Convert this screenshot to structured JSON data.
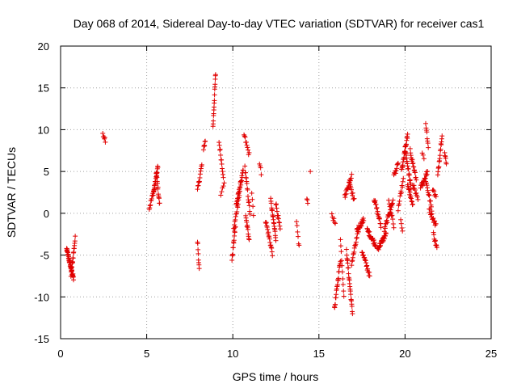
{
  "chart_data": {
    "type": "scatter",
    "title": "Day 068 of 2014, Sidereal Day-to-day VTEC variation (SDTVAR) for receiver cas1",
    "xlabel": "GPS time / hours",
    "ylabel": "SDTVAR / TECUs",
    "xlim": [
      0,
      25
    ],
    "ylim": [
      -15,
      20
    ],
    "xticks": [
      "0",
      "5",
      "10",
      "15",
      "20",
      "25"
    ],
    "yticks": [
      "-15",
      "-10",
      "-5",
      "0",
      "5",
      "10",
      "15",
      "20"
    ],
    "grid": true,
    "marker": "+",
    "color": "#e00000",
    "segments": [
      {
        "x0": 0.35,
        "x1": 0.75,
        "y0": -4.3,
        "y1": -7.8,
        "n": 40
      },
      {
        "x0": 0.6,
        "x1": 0.85,
        "y0": -7.5,
        "y1": -3.0,
        "n": 18
      },
      {
        "x0": 2.45,
        "x1": 2.6,
        "y0": 9.6,
        "y1": 8.8,
        "n": 6
      },
      {
        "x0": 5.15,
        "x1": 5.45,
        "y0": 0.6,
        "y1": 3.0,
        "n": 14
      },
      {
        "x0": 5.4,
        "x1": 5.65,
        "y0": 2.5,
        "y1": 5.5,
        "n": 18
      },
      {
        "x0": 5.55,
        "x1": 5.75,
        "y0": 5.0,
        "y1": 1.0,
        "n": 14
      },
      {
        "x0": 7.95,
        "x1": 8.05,
        "y0": -3.3,
        "y1": -6.8,
        "n": 8
      },
      {
        "x0": 7.95,
        "x1": 8.2,
        "y0": 2.7,
        "y1": 5.8,
        "n": 12
      },
      {
        "x0": 8.3,
        "x1": 8.4,
        "y0": 7.5,
        "y1": 8.8,
        "n": 6
      },
      {
        "x0": 8.85,
        "x1": 9.0,
        "y0": 10.3,
        "y1": 16.7,
        "n": 16
      },
      {
        "x0": 9.2,
        "x1": 9.45,
        "y0": 8.5,
        "y1": 4.5,
        "n": 12
      },
      {
        "x0": 9.3,
        "x1": 9.5,
        "y0": 2.0,
        "y1": 3.8,
        "n": 5
      },
      {
        "x0": 9.95,
        "x1": 10.15,
        "y0": -5.6,
        "y1": -1.5,
        "n": 14
      },
      {
        "x0": 10.05,
        "x1": 10.4,
        "y0": -2.0,
        "y1": 2.5,
        "n": 16
      },
      {
        "x0": 10.2,
        "x1": 10.6,
        "y0": 1.0,
        "y1": 5.0,
        "n": 28
      },
      {
        "x0": 10.65,
        "x1": 10.95,
        "y0": 9.4,
        "y1": 7.0,
        "n": 10
      },
      {
        "x0": 10.7,
        "x1": 11.0,
        "y0": 5.5,
        "y1": 0.0,
        "n": 16
      },
      {
        "x0": 10.75,
        "x1": 10.95,
        "y0": -0.5,
        "y1": -3.0,
        "n": 12
      },
      {
        "x0": 11.1,
        "x1": 11.2,
        "y0": 2.5,
        "y1": 0.0,
        "n": 4
      },
      {
        "x0": 11.55,
        "x1": 11.65,
        "y0": 6.0,
        "y1": 4.8,
        "n": 4
      },
      {
        "x0": 11.9,
        "x1": 12.3,
        "y0": -0.8,
        "y1": -4.8,
        "n": 18
      },
      {
        "x0": 12.2,
        "x1": 12.5,
        "y0": 1.5,
        "y1": -3.0,
        "n": 20
      },
      {
        "x0": 12.5,
        "x1": 12.75,
        "y0": 1.2,
        "y1": -2.0,
        "n": 12
      },
      {
        "x0": 13.7,
        "x1": 13.85,
        "y0": -1.2,
        "y1": -4.0,
        "n": 6
      },
      {
        "x0": 14.3,
        "x1": 14.35,
        "y0": 1.8,
        "y1": 1.2,
        "n": 3
      },
      {
        "x0": 14.5,
        "x1": 14.5,
        "y0": 5.0,
        "y1": 5.0,
        "n": 1
      },
      {
        "x0": 15.75,
        "x1": 15.95,
        "y0": -0.3,
        "y1": -1.0,
        "n": 6
      },
      {
        "x0": 15.9,
        "x1": 16.25,
        "y0": -11.5,
        "y1": -5.5,
        "n": 22
      },
      {
        "x0": 16.25,
        "x1": 16.45,
        "y0": -3.2,
        "y1": -9.8,
        "n": 10
      },
      {
        "x0": 16.5,
        "x1": 16.9,
        "y0": 2.0,
        "y1": 4.5,
        "n": 18
      },
      {
        "x0": 16.75,
        "x1": 17.05,
        "y0": 4.0,
        "y1": 1.5,
        "n": 12
      },
      {
        "x0": 16.6,
        "x1": 16.95,
        "y0": -4.5,
        "y1": -12.0,
        "n": 24
      },
      {
        "x0": 16.9,
        "x1": 17.3,
        "y0": -6.0,
        "y1": -2.0,
        "n": 18
      },
      {
        "x0": 17.2,
        "x1": 17.6,
        "y0": -2.0,
        "y1": -0.8,
        "n": 18
      },
      {
        "x0": 17.5,
        "x1": 17.95,
        "y0": -4.5,
        "y1": -7.5,
        "n": 20
      },
      {
        "x0": 17.8,
        "x1": 18.3,
        "y0": -2.0,
        "y1": -3.8,
        "n": 24
      },
      {
        "x0": 18.2,
        "x1": 18.6,
        "y0": 1.8,
        "y1": -1.5,
        "n": 18
      },
      {
        "x0": 18.4,
        "x1": 18.9,
        "y0": -4.3,
        "y1": -2.5,
        "n": 24
      },
      {
        "x0": 18.8,
        "x1": 19.3,
        "y0": -2.0,
        "y1": 1.5,
        "n": 22
      },
      {
        "x0": 19.05,
        "x1": 19.35,
        "y0": 1.5,
        "y1": -1.5,
        "n": 10
      },
      {
        "x0": 19.35,
        "x1": 19.6,
        "y0": 4.5,
        "y1": 5.8,
        "n": 10
      },
      {
        "x0": 19.6,
        "x1": 19.9,
        "y0": 0.5,
        "y1": 4.0,
        "n": 12
      },
      {
        "x0": 19.75,
        "x1": 19.85,
        "y0": -1.0,
        "y1": -2.0,
        "n": 4
      },
      {
        "x0": 19.8,
        "x1": 20.15,
        "y0": 5.0,
        "y1": 9.3,
        "n": 26
      },
      {
        "x0": 20.0,
        "x1": 20.35,
        "y0": 7.8,
        "y1": 3.0,
        "n": 22
      },
      {
        "x0": 20.15,
        "x1": 20.45,
        "y0": 3.5,
        "y1": 0.8,
        "n": 14
      },
      {
        "x0": 20.3,
        "x1": 20.65,
        "y0": 7.5,
        "y1": 4.0,
        "n": 18
      },
      {
        "x0": 20.45,
        "x1": 20.75,
        "y0": 3.5,
        "y1": 1.5,
        "n": 10
      },
      {
        "x0": 20.9,
        "x1": 21.3,
        "y0": 3.0,
        "y1": 5.0,
        "n": 18
      },
      {
        "x0": 21.2,
        "x1": 21.35,
        "y0": 10.8,
        "y1": 8.0,
        "n": 8
      },
      {
        "x0": 21.0,
        "x1": 21.1,
        "y0": 7.2,
        "y1": 6.5,
        "n": 3
      },
      {
        "x0": 21.2,
        "x1": 21.55,
        "y0": 4.0,
        "y1": 0.5,
        "n": 16
      },
      {
        "x0": 21.4,
        "x1": 21.8,
        "y0": 0.5,
        "y1": -1.5,
        "n": 16
      },
      {
        "x0": 21.6,
        "x1": 21.8,
        "y0": 3.0,
        "y1": 2.0,
        "n": 6
      },
      {
        "x0": 21.65,
        "x1": 21.85,
        "y0": -2.5,
        "y1": -4.2,
        "n": 10
      },
      {
        "x0": 21.9,
        "x1": 22.15,
        "y0": 4.5,
        "y1": 9.5,
        "n": 16
      },
      {
        "x0": 22.3,
        "x1": 22.4,
        "y0": 7.2,
        "y1": 5.8,
        "n": 6
      }
    ]
  }
}
